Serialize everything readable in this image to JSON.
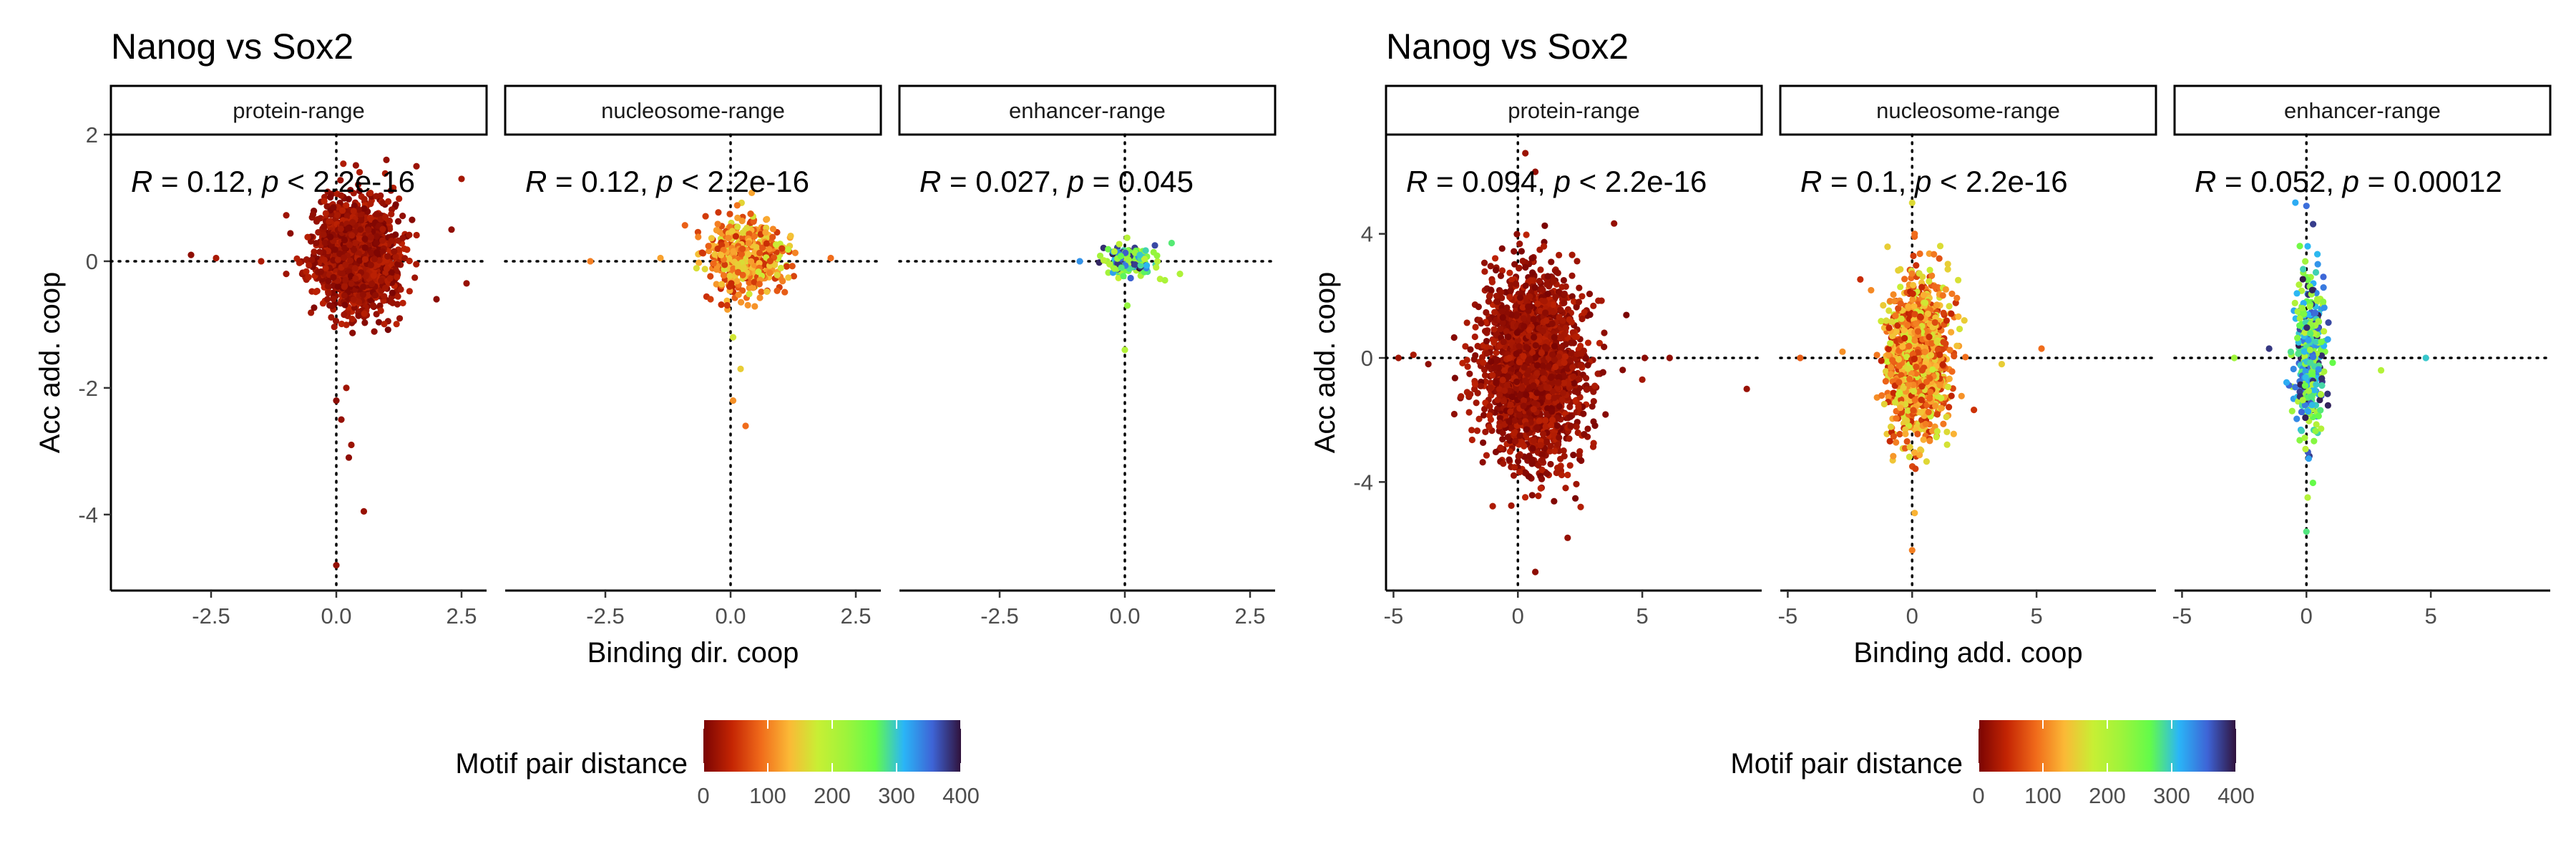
{
  "colorbar": {
    "title": "Motif pair distance",
    "ticks": [
      0,
      100,
      200,
      300,
      400
    ],
    "range": [
      0,
      400
    ],
    "colors": [
      "#7a0403",
      "#c42503",
      "#f06a1a",
      "#fbb936",
      "#c8ef34",
      "#9df43b",
      "#63fb4a",
      "#2ab5f7",
      "#3e64d6",
      "#30123b"
    ]
  },
  "chart_data": [
    {
      "type": "scatter",
      "title": "Nanog vs Sox2",
      "xlabel": "Binding dir. coop",
      "ylabel": "Acc add. coop",
      "xlim": [
        -4.5,
        3.0
      ],
      "ylim": [
        -5.2,
        2.0
      ],
      "xticks": [
        -2.5,
        0.0,
        2.5
      ],
      "xtick_labels": [
        "-2.5",
        "0.0",
        "2.5"
      ],
      "yticks": [
        2,
        0,
        -2,
        -4
      ],
      "ytick_labels": [
        "2",
        "0",
        "-2",
        "-4"
      ],
      "reference_lines": {
        "x": 0,
        "y": 0,
        "style": "dotted"
      },
      "grid": false,
      "legend": "bottom",
      "color_by": "Motif pair distance",
      "facets": [
        {
          "name": "protein-range",
          "annotation": {
            "r_label": "R = 0.12",
            "p_label": "p < 2.2e-16"
          },
          "distance_range": [
            0,
            40
          ],
          "center": [
            0.4,
            0.1
          ],
          "spread": [
            0.4,
            0.4
          ],
          "n": 1800,
          "points": [
            {
              "x": 0.0,
              "y": -4.8,
              "d": 15
            },
            {
              "x": 0.55,
              "y": -3.95,
              "d": 18
            },
            {
              "x": 0.25,
              "y": -3.1,
              "d": 12
            },
            {
              "x": 0.3,
              "y": -2.9,
              "d": 20
            },
            {
              "x": 0.1,
              "y": -2.5,
              "d": 16
            },
            {
              "x": 0.0,
              "y": -2.2,
              "d": 10
            },
            {
              "x": 0.2,
              "y": -2.0,
              "d": 22
            },
            {
              "x": 2.5,
              "y": 1.3,
              "d": 25
            },
            {
              "x": 2.6,
              "y": -0.35,
              "d": 18
            },
            {
              "x": 2.3,
              "y": 0.5,
              "d": 14
            },
            {
              "x": -1.5,
              "y": 0.0,
              "d": 30
            },
            {
              "x": -2.4,
              "y": 0.05,
              "d": 28
            },
            {
              "x": -2.9,
              "y": 0.1,
              "d": 12
            },
            {
              "x": -1.0,
              "y": -0.2,
              "d": 22
            },
            {
              "x": 1.0,
              "y": 1.6,
              "d": 16
            },
            {
              "x": 1.6,
              "y": 1.5,
              "d": 20
            },
            {
              "x": 2.0,
              "y": -0.6,
              "d": 10
            }
          ]
        },
        {
          "name": "nucleosome-range",
          "annotation": {
            "r_label": "R = 0.12",
            "p_label": "p < 2.2e-16"
          },
          "distance_range": [
            40,
            180
          ],
          "center": [
            0.3,
            0.05
          ],
          "spread": [
            0.4,
            0.3
          ],
          "n": 500,
          "points": [
            {
              "x": 0.3,
              "y": -2.6,
              "d": 90
            },
            {
              "x": 0.05,
              "y": -2.2,
              "d": 110
            },
            {
              "x": 0.2,
              "y": -1.7,
              "d": 150
            },
            {
              "x": 0.05,
              "y": -1.2,
              "d": 170
            },
            {
              "x": -0.4,
              "y": -0.6,
              "d": 60
            },
            {
              "x": -2.8,
              "y": 0.0,
              "d": 100
            },
            {
              "x": -1.4,
              "y": 0.05,
              "d": 120
            },
            {
              "x": 2.0,
              "y": 0.05,
              "d": 90
            },
            {
              "x": 1.2,
              "y": 0.4,
              "d": 140
            },
            {
              "x": 0.4,
              "y": 0.75,
              "d": 80
            }
          ]
        },
        {
          "name": "enhancer-range",
          "annotation": {
            "r_label": "R = 0.027",
            "p_label": "p = 0.045"
          },
          "distance_range": [
            180,
            400
          ],
          "center": [
            0.1,
            0.0
          ],
          "spread": [
            0.25,
            0.12
          ],
          "n": 140,
          "points": [
            {
              "x": 0.0,
              "y": -1.4,
              "d": 200
            },
            {
              "x": 0.05,
              "y": -0.7,
              "d": 230
            },
            {
              "x": 0.8,
              "y": -0.3,
              "d": 210
            },
            {
              "x": 1.1,
              "y": -0.2,
              "d": 205
            },
            {
              "x": -0.9,
              "y": 0.0,
              "d": 330
            },
            {
              "x": 0.6,
              "y": 0.25,
              "d": 370
            },
            {
              "x": 0.3,
              "y": 0.1,
              "d": 300
            }
          ]
        }
      ]
    },
    {
      "type": "scatter",
      "title": "Nanog vs Sox2",
      "xlabel": "Binding add. coop",
      "ylabel": "Acc add. coop",
      "xlim": [
        -5.3,
        9.8
      ],
      "ylim": [
        -7.5,
        7.2
      ],
      "xticks": [
        -5,
        0,
        5
      ],
      "xtick_labels": [
        "-5",
        "0",
        "5"
      ],
      "yticks": [
        4,
        0,
        -4
      ],
      "ytick_labels": [
        "4",
        "0",
        "-4"
      ],
      "reference_lines": {
        "x": 0,
        "y": 0,
        "style": "dotted"
      },
      "grid": false,
      "legend": "bottom",
      "color_by": "Motif pair distance",
      "facets": [
        {
          "name": "protein-range",
          "annotation": {
            "r_label": "R = 0.094",
            "p_label": "p < 2.2e-16"
          },
          "distance_range": [
            0,
            40
          ],
          "center": [
            0.6,
            -0.3
          ],
          "spread": [
            1.0,
            1.5
          ],
          "n": 2200,
          "points": [
            {
              "x": 9.2,
              "y": -1.0,
              "d": 18
            },
            {
              "x": 6.1,
              "y": 0.0,
              "d": 14
            },
            {
              "x": 5.1,
              "y": 0.0,
              "d": 10
            },
            {
              "x": 5.0,
              "y": -0.7,
              "d": 25
            },
            {
              "x": 2.0,
              "y": -5.8,
              "d": 16
            },
            {
              "x": 0.7,
              "y": -6.9,
              "d": 12
            },
            {
              "x": 0.3,
              "y": 6.6,
              "d": 20
            },
            {
              "x": 0.7,
              "y": 6.0,
              "d": 15
            },
            {
              "x": -4.8,
              "y": 0.0,
              "d": 22
            },
            {
              "x": -4.2,
              "y": 0.1,
              "d": 28
            },
            {
              "x": -3.6,
              "y": -0.2,
              "d": 12
            }
          ]
        },
        {
          "name": "nucleosome-range",
          "annotation": {
            "r_label": "R = 0.1",
            "p_label": "p < 2.2e-16"
          },
          "distance_range": [
            40,
            180
          ],
          "center": [
            0.2,
            0.0
          ],
          "spread": [
            0.6,
            1.3
          ],
          "n": 1200,
          "points": [
            {
              "x": -4.5,
              "y": 0.0,
              "d": 80
            },
            {
              "x": -2.8,
              "y": 0.2,
              "d": 110
            },
            {
              "x": 5.2,
              "y": 0.3,
              "d": 90
            },
            {
              "x": 3.6,
              "y": -0.2,
              "d": 150
            },
            {
              "x": 0.0,
              "y": -6.2,
              "d": 100
            },
            {
              "x": 0.1,
              "y": -5.0,
              "d": 130
            },
            {
              "x": 0.0,
              "y": 5.0,
              "d": 160
            },
            {
              "x": 0.1,
              "y": 4.0,
              "d": 90
            }
          ]
        },
        {
          "name": "enhancer-range",
          "annotation": {
            "r_label": "R = 0.052",
            "p_label": "p = 0.00012"
          },
          "distance_range": [
            180,
            400
          ],
          "center": [
            0.1,
            0.0
          ],
          "spread": [
            0.3,
            1.3
          ],
          "n": 400,
          "points": [
            {
              "x": 0.0,
              "y": -5.6,
              "d": 280
            },
            {
              "x": 0.05,
              "y": -4.5,
              "d": 200
            },
            {
              "x": 0.0,
              "y": 4.9,
              "d": 350
            },
            {
              "x": 0.05,
              "y": 3.6,
              "d": 310
            },
            {
              "x": -2.9,
              "y": 0.0,
              "d": 220
            },
            {
              "x": 3.0,
              "y": -0.4,
              "d": 200
            },
            {
              "x": 4.8,
              "y": 0.0,
              "d": 300
            },
            {
              "x": -1.5,
              "y": 0.3,
              "d": 380
            }
          ]
        }
      ]
    }
  ]
}
